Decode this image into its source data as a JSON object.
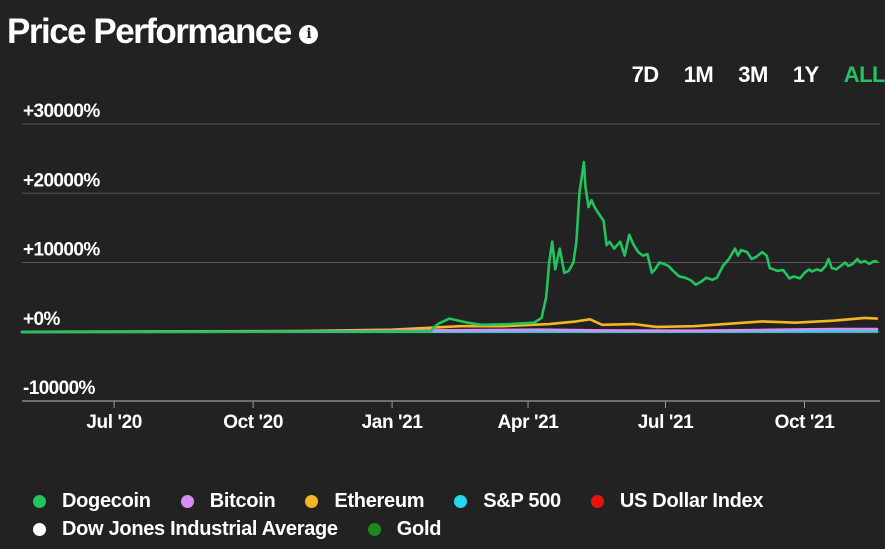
{
  "header": {
    "title": "Price Performance",
    "info_icon": "info-icon"
  },
  "time_ranges": [
    {
      "label": "7D",
      "active": false
    },
    {
      "label": "1M",
      "active": false
    },
    {
      "label": "3M",
      "active": false
    },
    {
      "label": "1Y",
      "active": false
    },
    {
      "label": "ALL",
      "active": true
    }
  ],
  "colors": {
    "active": "#21c45e",
    "background": "#222222",
    "grid": "#555555"
  },
  "chart_data": {
    "type": "line",
    "title": "Price Performance",
    "xlabel": "",
    "ylabel": "",
    "ylim": [
      -10000,
      30000
    ],
    "yticks": [
      {
        "value": 30000,
        "label": "+30000%"
      },
      {
        "value": 20000,
        "label": "+20000%"
      },
      {
        "value": 10000,
        "label": "+10000%"
      },
      {
        "value": 0,
        "label": "+0%"
      },
      {
        "value": -10000,
        "label": "-10000%"
      }
    ],
    "xlim": [
      "2020-05-01",
      "2021-11-20"
    ],
    "xticks": [
      {
        "date": "2020-07-01",
        "label": "Jul '20"
      },
      {
        "date": "2020-10-01",
        "label": "Oct '20"
      },
      {
        "date": "2021-01-01",
        "label": "Jan '21"
      },
      {
        "date": "2021-04-01",
        "label": "Apr '21"
      },
      {
        "date": "2021-07-01",
        "label": "Jul '21"
      },
      {
        "date": "2021-10-01",
        "label": "Oct '21"
      }
    ],
    "series": [
      {
        "name": "Dogecoin",
        "color": "#21c45e",
        "points": [
          [
            "2020-05-01",
            0
          ],
          [
            "2020-09-01",
            10
          ],
          [
            "2020-12-15",
            40
          ],
          [
            "2021-01-27",
            50
          ],
          [
            "2021-01-28",
            500
          ],
          [
            "2021-02-01",
            1200
          ],
          [
            "2021-02-08",
            1900
          ],
          [
            "2021-02-20",
            1300
          ],
          [
            "2021-03-01",
            1000
          ],
          [
            "2021-03-20",
            1100
          ],
          [
            "2021-04-05",
            1300
          ],
          [
            "2021-04-10",
            2000
          ],
          [
            "2021-04-13",
            5000
          ],
          [
            "2021-04-15",
            10000
          ],
          [
            "2021-04-17",
            13000
          ],
          [
            "2021-04-19",
            9000
          ],
          [
            "2021-04-22",
            12000
          ],
          [
            "2021-04-25",
            8500
          ],
          [
            "2021-04-28",
            8800
          ],
          [
            "2021-05-01",
            10000
          ],
          [
            "2021-05-03",
            13000
          ],
          [
            "2021-05-05",
            20000
          ],
          [
            "2021-05-07",
            23000
          ],
          [
            "2021-05-08",
            24500
          ],
          [
            "2021-05-09",
            21000
          ],
          [
            "2021-05-11",
            18000
          ],
          [
            "2021-05-13",
            19000
          ],
          [
            "2021-05-15",
            18000
          ],
          [
            "2021-05-18",
            17000
          ],
          [
            "2021-05-21",
            16000
          ],
          [
            "2021-05-23",
            12500
          ],
          [
            "2021-05-25",
            13000
          ],
          [
            "2021-05-28",
            12000
          ],
          [
            "2021-06-01",
            13000
          ],
          [
            "2021-06-04",
            11000
          ],
          [
            "2021-06-07",
            14000
          ],
          [
            "2021-06-10",
            12500
          ],
          [
            "2021-06-13",
            11500
          ],
          [
            "2021-06-16",
            11000
          ],
          [
            "2021-06-19",
            11200
          ],
          [
            "2021-06-22",
            8500
          ],
          [
            "2021-06-24",
            9000
          ],
          [
            "2021-06-27",
            10000
          ],
          [
            "2021-06-30",
            9800
          ],
          [
            "2021-07-03",
            9500
          ],
          [
            "2021-07-06",
            8800
          ],
          [
            "2021-07-10",
            8000
          ],
          [
            "2021-07-14",
            7800
          ],
          [
            "2021-07-18",
            7400
          ],
          [
            "2021-07-21",
            6800
          ],
          [
            "2021-07-25",
            7300
          ],
          [
            "2021-07-28",
            7800
          ],
          [
            "2021-08-01",
            7500
          ],
          [
            "2021-08-04",
            7800
          ],
          [
            "2021-08-08",
            9500
          ],
          [
            "2021-08-12",
            10500
          ],
          [
            "2021-08-16",
            12000
          ],
          [
            "2021-08-18",
            11000
          ],
          [
            "2021-08-20",
            11800
          ],
          [
            "2021-08-24",
            11500
          ],
          [
            "2021-08-27",
            10500
          ],
          [
            "2021-08-30",
            10800
          ],
          [
            "2021-09-03",
            11500
          ],
          [
            "2021-09-06",
            11000
          ],
          [
            "2021-09-08",
            9200
          ],
          [
            "2021-09-13",
            8800
          ],
          [
            "2021-09-17",
            8900
          ],
          [
            "2021-09-21",
            7700
          ],
          [
            "2021-09-24",
            8000
          ],
          [
            "2021-09-28",
            7700
          ],
          [
            "2021-10-01",
            8500
          ],
          [
            "2021-10-04",
            9000
          ],
          [
            "2021-10-06",
            8700
          ],
          [
            "2021-10-09",
            9000
          ],
          [
            "2021-10-12",
            8800
          ],
          [
            "2021-10-15",
            9500
          ],
          [
            "2021-10-17",
            10500
          ],
          [
            "2021-10-19",
            9200
          ],
          [
            "2021-10-22",
            9000
          ],
          [
            "2021-10-25",
            9500
          ],
          [
            "2021-10-28",
            10000
          ],
          [
            "2021-10-30",
            9500
          ],
          [
            "2021-11-02",
            9800
          ],
          [
            "2021-11-05",
            10500
          ],
          [
            "2021-11-07",
            10000
          ],
          [
            "2021-11-10",
            10200
          ],
          [
            "2021-11-13",
            9800
          ],
          [
            "2021-11-16",
            10200
          ],
          [
            "2021-11-18",
            10100
          ]
        ]
      },
      {
        "name": "Bitcoin",
        "color": "#d88bf2",
        "points": [
          [
            "2020-05-01",
            0
          ],
          [
            "2020-10-01",
            20
          ],
          [
            "2021-01-01",
            150
          ],
          [
            "2021-04-10",
            300
          ],
          [
            "2021-05-20",
            200
          ],
          [
            "2021-07-20",
            150
          ],
          [
            "2021-09-01",
            250
          ],
          [
            "2021-10-20",
            400
          ],
          [
            "2021-11-18",
            380
          ]
        ]
      },
      {
        "name": "Ethereum",
        "color": "#f2b824",
        "points": [
          [
            "2020-05-01",
            0
          ],
          [
            "2020-08-01",
            50
          ],
          [
            "2020-11-01",
            100
          ],
          [
            "2021-01-01",
            300
          ],
          [
            "2021-02-15",
            800
          ],
          [
            "2021-03-15",
            800
          ],
          [
            "2021-04-15",
            1100
          ],
          [
            "2021-05-03",
            1500
          ],
          [
            "2021-05-12",
            1800
          ],
          [
            "2021-05-20",
            1000
          ],
          [
            "2021-06-10",
            1100
          ],
          [
            "2021-06-25",
            700
          ],
          [
            "2021-07-20",
            800
          ],
          [
            "2021-08-15",
            1200
          ],
          [
            "2021-09-03",
            1500
          ],
          [
            "2021-09-25",
            1300
          ],
          [
            "2021-10-20",
            1600
          ],
          [
            "2021-11-10",
            2000
          ],
          [
            "2021-11-18",
            1900
          ]
        ]
      },
      {
        "name": "S&P 500",
        "color": "#23d7f0",
        "points": [
          [
            "2020-05-01",
            0
          ],
          [
            "2021-11-18",
            30
          ]
        ]
      },
      {
        "name": "US Dollar Index",
        "color": "#e8120c",
        "points": [
          [
            "2020-05-01",
            0
          ],
          [
            "2021-11-18",
            0
          ]
        ]
      },
      {
        "name": "Dow Jones Industrial Average",
        "color": "#ffffff",
        "points": [
          [
            "2020-05-01",
            0
          ],
          [
            "2021-11-18",
            20
          ]
        ]
      },
      {
        "name": "Gold",
        "color": "#1c8a1a",
        "points": [
          [
            "2020-05-01",
            0
          ],
          [
            "2021-11-18",
            0
          ]
        ]
      }
    ]
  }
}
